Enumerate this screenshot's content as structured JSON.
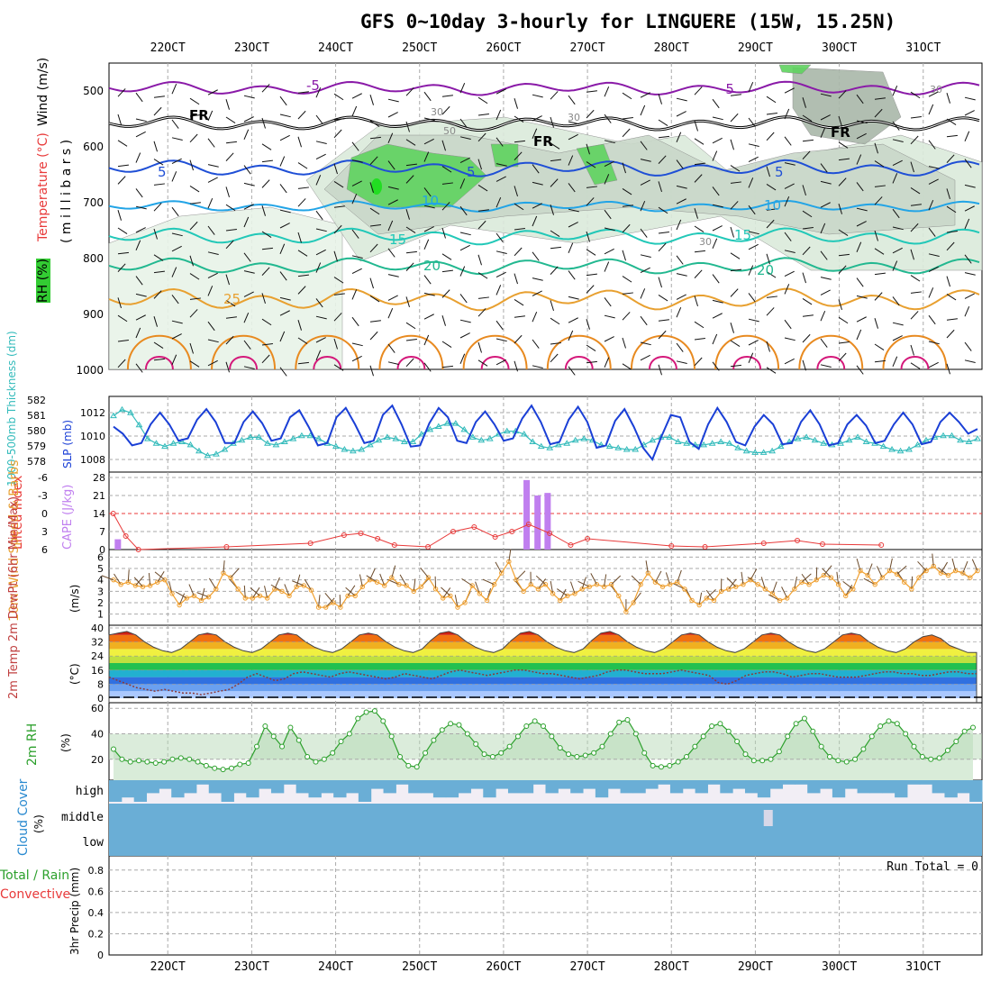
{
  "title": "GFS 0~10day 3-hourly for LINGUERE (15W, 15.25N)",
  "date_labels": [
    "22OCT",
    "23OCT",
    "24OCT",
    "25OCT",
    "26OCT",
    "27OCT",
    "28OCT",
    "29OCT",
    "30OCT",
    "31OCT"
  ],
  "colors": {
    "rh_green": "#33cc33",
    "slp_blue": "#1a3fd6",
    "thickness_cyan": "#33bbbb",
    "lifted_red": "#e83a3a",
    "cape_purple": "#c07fef",
    "wind_orange": "#f0a030",
    "rh2m_green": "#2ca02c",
    "cloud_blue": "#6aaed6",
    "precip_red": "#ff3333"
  },
  "panels": {
    "upper_air": {
      "label_rh": "RH (%)",
      "label_temp": "Temperature (°C)",
      "label_wind": "Wind (m/s)",
      "label_units": "( m i l l i b a r s )",
      "yticks": [
        "500",
        "600",
        "700",
        "800",
        "900",
        "1000"
      ],
      "contour_labels": [
        "-5",
        "-5",
        "FR",
        "FR",
        "FR",
        "5",
        "5",
        "5",
        "10",
        "10",
        "15",
        "15",
        "20",
        "20",
        "25",
        "30",
        "30",
        "50",
        "30",
        "30"
      ]
    },
    "slp": {
      "label_thick": "1000-500mb Thickness (dm)",
      "label_slp": "SLP (mb)",
      "yticks_left": [
        "582",
        "581",
        "580",
        "579",
        "578"
      ],
      "yticks_right": [
        "1012",
        "1010",
        "1008"
      ]
    },
    "cape": {
      "label_li": "Lifted Index",
      "label_cape": "CAPE (J/kg)",
      "yticks_left": [
        "-6",
        "-3",
        "0",
        "3",
        "6"
      ],
      "yticks_right": [
        "28",
        "21",
        "14",
        "7",
        "0"
      ]
    },
    "wind10": {
      "label": "10m Wind Speed & Barbs",
      "label_units": "(m/s)",
      "yticks": [
        "6",
        "5",
        "4",
        "3",
        "2",
        "1"
      ]
    },
    "temp2m": {
      "label": "2m Temp 2m DewPt (6hr Min/Max)",
      "label_units": "(°C)",
      "yticks": [
        "40",
        "32",
        "24",
        "16",
        "8",
        "0"
      ]
    },
    "rh2m": {
      "label": "2m RH",
      "label_units": "(%)",
      "yticks": [
        "60",
        "40",
        "20"
      ]
    },
    "cloud": {
      "label": "Cloud Cover",
      "label_units": "(%)",
      "levels": [
        "high",
        "middle",
        "low"
      ]
    },
    "precip": {
      "label_total": "Total / Rain",
      "label_conv": "Convective",
      "label_units": "3hr Precip (mm)",
      "yticks": [
        "0.8",
        "0.6",
        "0.4",
        "0.2",
        "0"
      ],
      "run_total": "Run Total = 0"
    }
  },
  "chart_data": [
    {
      "type": "line",
      "name": "Thickness",
      "series": [
        {
          "name": "1000-500mb Thickness",
          "values": [
            581.2,
            581.6,
            581.4,
            580.6,
            579.7,
            579.4,
            579.2,
            579.4,
            579.5,
            579.3,
            578.9,
            578.6,
            578.7,
            579.0,
            579.4,
            579.6,
            579.8,
            579.8,
            579.4,
            579.3,
            579.5,
            579.7,
            579.9,
            579.9,
            579.7,
            579.4,
            579.2,
            579.0,
            578.9,
            579.0,
            579.3,
            579.6,
            579.8,
            579.7,
            579.5,
            579.5,
            580.0,
            580.3,
            580.5,
            580.7,
            580.7,
            580.3,
            579.8,
            579.6,
            579.7,
            580.0,
            580.2,
            580.2,
            580.0,
            579.5,
            579.2,
            579.1,
            579.3,
            579.4,
            579.6,
            579.7,
            579.6,
            579.3,
            579.2,
            579.1,
            579.0,
            579.0,
            579.3,
            579.6,
            579.8,
            579.8,
            579.5,
            579.4,
            579.3,
            579.3,
            579.4,
            579.5,
            579.4,
            579.1,
            578.9,
            578.8,
            578.8,
            578.9,
            579.2,
            579.5,
            579.7,
            579.8,
            579.6,
            579.4,
            579.3,
            579.4,
            579.6,
            579.8,
            579.5,
            579.4,
            579.2,
            579.0,
            578.9,
            579.0,
            579.3,
            579.6,
            579.8,
            579.9,
            579.9,
            579.6,
            579.5,
            579.7
          ]
        }
      ]
    },
    {
      "type": "line",
      "name": "SLP",
      "series": [
        {
          "name": "SLP",
          "values": [
            1010.8,
            1010.2,
            1009.2,
            1009.4,
            1011.0,
            1012.0,
            1011.0,
            1009.6,
            1009.8,
            1011.4,
            1012.3,
            1011.2,
            1009.4,
            1009.4,
            1011.2,
            1012.1,
            1011.1,
            1009.6,
            1009.8,
            1011.6,
            1012.2,
            1010.8,
            1009.2,
            1009.4,
            1011.6,
            1012.4,
            1011.0,
            1009.4,
            1009.6,
            1011.8,
            1012.6,
            1011.0,
            1009.1,
            1009.2,
            1011.1,
            1012.4,
            1011.6,
            1009.6,
            1009.4,
            1011.2,
            1012.1,
            1011.0,
            1009.6,
            1009.8,
            1011.5,
            1012.6,
            1011.2,
            1009.3,
            1009.5,
            1011.4,
            1012.5,
            1011.2,
            1009.0,
            1009.2,
            1011.3,
            1012.3,
            1010.8,
            1009.0,
            1008.0,
            1010.0,
            1011.8,
            1011.6,
            1009.5,
            1008.9,
            1011.0,
            1012.4,
            1011.2,
            1009.5,
            1009.2,
            1010.8,
            1011.8,
            1011.0,
            1009.3,
            1009.4,
            1011.2,
            1012.2,
            1011.0,
            1009.2,
            1009.4,
            1011.0,
            1011.8,
            1010.9,
            1009.4,
            1009.6,
            1011.0,
            1012.0,
            1011.0,
            1009.3,
            1009.5,
            1011.2,
            1012.0,
            1011.2,
            1010.2,
            1010.6
          ]
        }
      ]
    },
    {
      "type": "bar",
      "name": "CAPE",
      "series": [
        {
          "name": "CAPE",
          "values": [
            {
              "day": 21.6,
              "v": 4
            },
            {
              "day": 26.47,
              "v": 27
            },
            {
              "day": 26.6,
              "v": 21
            },
            {
              "day": 26.72,
              "v": 22
            }
          ]
        }
      ]
    },
    {
      "type": "line",
      "name": "10m Wind Speed",
      "series": [
        {
          "name": "10m Wind Speed",
          "values": [
            4.0,
            3.6,
            3.8,
            3.5,
            3.4,
            3.5,
            3.8,
            4.0,
            2.8,
            1.8,
            2.4,
            2.6,
            2.2,
            2.5,
            3.2,
            4.6,
            4.2,
            3.2,
            2.4,
            2.4,
            2.6,
            2.4,
            3.2,
            3.0,
            2.6,
            3.4,
            3.5,
            3.1,
            1.6,
            1.6,
            2.0,
            1.6,
            2.6,
            2.6,
            3.4,
            4.0,
            3.8,
            3.5,
            4.2,
            3.6,
            3.5,
            3.0,
            3.4,
            4.2,
            3.2,
            2.4,
            2.6,
            1.6,
            2.0,
            3.5,
            2.8,
            2.2,
            3.6,
            4.6,
            5.6,
            4.0,
            3.0,
            3.6,
            3.2,
            3.6,
            2.8,
            2.2,
            2.6,
            2.8,
            3.2,
            3.4,
            3.6,
            3.4,
            3.6,
            2.6,
            1.2,
            2.0,
            3.6,
            4.6,
            3.8,
            3.4,
            3.6,
            3.8,
            3.2,
            2.2,
            1.8,
            2.4,
            2.2,
            3.0,
            3.2,
            3.4,
            3.6,
            4.0,
            3.6,
            3.2,
            2.8,
            2.2,
            2.4,
            3.2,
            3.8,
            3.6,
            4.0,
            4.4,
            4.2,
            3.6,
            2.6,
            3.2,
            4.8,
            4.4,
            3.6,
            4.2,
            4.8,
            4.5,
            3.8,
            3.2,
            4.2,
            4.8,
            5.2,
            4.6,
            4.4,
            4.8,
            4.6,
            4.2,
            4.8
          ]
        }
      ]
    },
    {
      "type": "area",
      "name": "2m Temp",
      "series": [
        {
          "name": "2m Temp",
          "values": [
            36,
            37,
            38,
            36,
            32,
            29,
            27,
            26,
            28,
            32,
            36,
            37,
            36,
            32,
            29,
            27,
            26,
            28,
            32,
            36,
            37,
            36,
            32,
            29,
            27,
            26,
            28,
            32,
            36,
            37,
            36,
            32,
            29,
            27,
            26,
            28,
            33,
            37,
            38,
            36,
            32,
            29,
            27,
            26,
            28,
            33,
            37,
            38,
            36,
            32,
            29,
            27,
            26,
            28,
            33,
            37,
            38,
            36,
            32,
            29,
            27,
            26,
            28,
            32,
            36,
            37,
            36,
            32,
            29,
            27,
            26,
            28,
            32,
            36,
            37,
            36,
            32,
            29,
            27,
            26,
            28,
            32,
            36,
            37,
            36,
            32,
            29,
            27,
            26,
            28,
            32,
            35,
            36,
            34,
            30,
            28,
            26,
            26
          ]
        },
        {
          "name": "2m DewPt",
          "values": [
            12,
            10,
            8,
            6,
            5,
            4,
            5,
            4,
            3,
            3,
            2,
            3,
            4,
            5,
            8,
            12,
            14,
            12,
            10,
            11,
            14,
            15,
            14,
            13,
            12,
            14,
            15,
            14,
            13,
            12,
            11,
            12,
            14,
            13,
            12,
            11,
            13,
            15,
            16,
            15,
            14,
            13,
            14,
            15,
            16,
            16,
            15,
            14,
            14,
            13,
            12,
            11,
            12,
            13,
            15,
            16,
            16,
            15,
            14,
            14,
            14,
            15,
            16,
            15,
            14,
            13,
            9,
            8,
            10,
            13,
            14,
            15,
            15,
            14,
            12,
            13,
            14,
            14,
            13,
            12,
            12,
            12,
            13,
            14,
            15,
            15,
            14,
            14,
            13,
            13,
            14,
            15,
            15,
            14,
            14
          ]
        }
      ]
    },
    {
      "type": "area",
      "name": "2m RH",
      "series": [
        {
          "name": "2m RH",
          "values": [
            28,
            20,
            18,
            19,
            18,
            17,
            18,
            20,
            21,
            20,
            18,
            15,
            13,
            12,
            13,
            16,
            17,
            30,
            46,
            38,
            30,
            45,
            35,
            22,
            18,
            20,
            25,
            34,
            40,
            52,
            57,
            58,
            50,
            38,
            22,
            15,
            14,
            25,
            35,
            43,
            48,
            47,
            40,
            32,
            24,
            22,
            25,
            30,
            38,
            46,
            50,
            46,
            38,
            29,
            24,
            22,
            23,
            25,
            30,
            40,
            49,
            51,
            40,
            25,
            15,
            14,
            15,
            18,
            22,
            30,
            38,
            46,
            48,
            42,
            34,
            24,
            19,
            19,
            20,
            26,
            38,
            48,
            52,
            42,
            30,
            22,
            19,
            18,
            20,
            28,
            38,
            46,
            50,
            48,
            40,
            30,
            22,
            20,
            21,
            27,
            34,
            42,
            45
          ]
        }
      ]
    },
    {
      "type": "table",
      "name": "Cloud Cover",
      "series": [
        {
          "name": "high",
          "values": [
            100,
            80,
            100,
            60,
            40,
            80,
            60,
            20,
            60,
            100,
            60,
            80,
            40,
            60,
            20,
            60,
            80,
            60,
            80,
            60,
            100,
            40,
            60,
            20,
            60,
            60,
            80,
            80,
            60,
            40,
            80,
            40,
            60,
            60,
            20,
            60,
            40,
            60,
            40,
            80,
            40,
            60,
            60,
            40,
            20,
            60,
            40,
            60,
            20,
            60,
            40,
            60,
            80,
            40,
            20,
            20,
            60,
            40,
            80,
            40,
            60,
            60,
            60,
            80,
            20,
            20,
            60,
            80,
            60,
            100
          ]
        },
        {
          "name": "middle",
          "values": [
            100
          ]
        },
        {
          "name": "low",
          "values": [
            100
          ]
        }
      ]
    },
    {
      "type": "line",
      "name": "3hr Precip",
      "series": [
        {
          "name": "Total / Rain",
          "values": [
            0
          ]
        },
        {
          "name": "Convective",
          "values": [
            0
          ]
        }
      ]
    }
  ]
}
